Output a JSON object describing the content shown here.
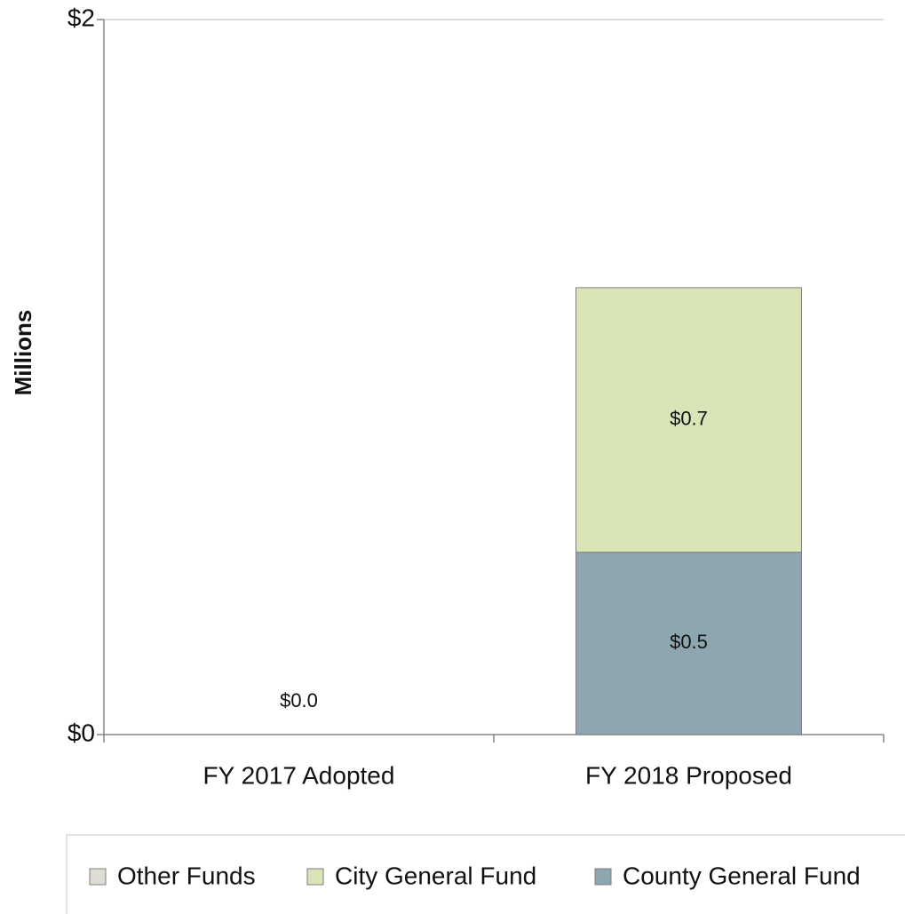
{
  "chart_data": {
    "type": "stacked-bar",
    "y_label": "Millions",
    "categories": [
      "FY 2017 Adopted",
      "FY 2018 Proposed"
    ],
    "series": [
      {
        "name": "Other Funds",
        "color": "#dfddd3",
        "values": [
          0,
          0
        ]
      },
      {
        "name": "City General Fund",
        "color": "#d9e5b6",
        "values": [
          0,
          0.74
        ],
        "value_labels": [
          null,
          "$0.7"
        ]
      },
      {
        "name": "County General Fund",
        "color": "#8ea6b0",
        "values": [
          0,
          0.51
        ],
        "value_labels": [
          "$0.0",
          "$0.5"
        ]
      }
    ],
    "ylim": [
      0,
      2
    ],
    "yticks": [
      {
        "value": 0,
        "label": "$0"
      },
      {
        "value": 2,
        "label": "$2"
      }
    ],
    "grid": true,
    "legend": "bottom"
  }
}
